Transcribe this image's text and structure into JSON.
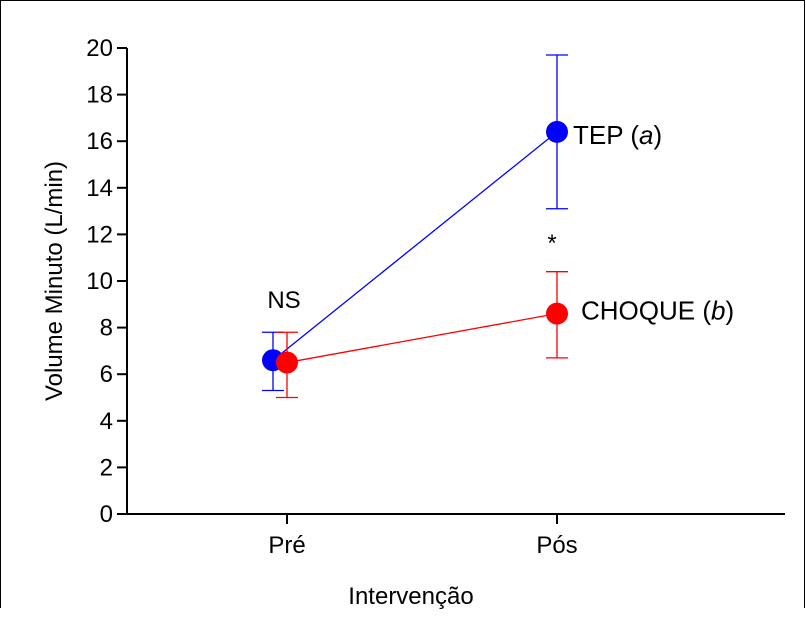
{
  "chart_data": {
    "type": "line",
    "xlabel": "Intervenção",
    "ylabel": "Volume Minuto (L/min)",
    "categories": [
      "Pré",
      "Pós"
    ],
    "ylim": [
      0,
      20
    ],
    "yticks": [
      0,
      2,
      4,
      6,
      8,
      10,
      12,
      14,
      16,
      18,
      20
    ],
    "ytick_labels": [
      "0",
      "2",
      "4",
      "6",
      "8",
      "10",
      "12",
      "14",
      "16",
      "18",
      "20"
    ],
    "grid": false,
    "series": [
      {
        "label_text": "TEP",
        "label_suffix": "(a)",
        "label_suffix_letter": "a",
        "color": "#0000ff",
        "values": [
          6.6,
          16.4
        ],
        "error_low": [
          5.3,
          13.1
        ],
        "error_high": [
          7.8,
          19.7
        ]
      },
      {
        "label_text": "CHOQUE",
        "label_suffix": "(b)",
        "label_suffix_letter": "b",
        "color": "#ff0000",
        "values": [
          6.5,
          8.6
        ],
        "error_low": [
          5.0,
          6.7
        ],
        "error_high": [
          7.8,
          10.4
        ]
      }
    ],
    "annotations": [
      {
        "text": "NS",
        "category": "Pré"
      },
      {
        "text": "*",
        "category": "Pós"
      }
    ]
  }
}
